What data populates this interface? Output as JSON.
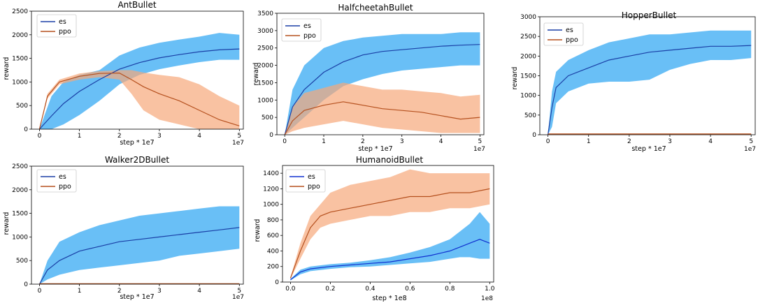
{
  "figure_colors": {
    "es_line": "#1a3fa6",
    "es_line_humanoid": "#1030d0",
    "es_band": "#4fb4f5",
    "ppo_line": "#b5501e",
    "ppo_band": "#f7a87a",
    "overlap_band": "#a9a1a0"
  },
  "chart_data": [
    {
      "id": "ant",
      "type": "line",
      "title": "AntBullet",
      "xlabel": "step * 1e7",
      "ylabel": "reward",
      "exponent_label": "1e7",
      "xlim": [
        -0.2,
        5.1
      ],
      "ylim": [
        0,
        2500
      ],
      "xticks": [
        0,
        1,
        2,
        3,
        4,
        5
      ],
      "xtick_labels": [
        "0",
        "1",
        "2",
        "3",
        "4",
        "5"
      ],
      "yticks": [
        0,
        500,
        1000,
        1500,
        2000,
        2500
      ],
      "ytick_labels": [
        "0",
        "500",
        "1000",
        "1500",
        "2000",
        "2500"
      ],
      "legend": [
        "es",
        "ppo"
      ],
      "legend_position": "top-left",
      "series": [
        {
          "name": "es",
          "x": [
            0,
            0.3,
            0.6,
            1.0,
            1.5,
            2.0,
            2.5,
            3.0,
            3.5,
            4.0,
            4.5,
            5.0
          ],
          "mean": [
            0,
            280,
            540,
            800,
            1050,
            1270,
            1410,
            1510,
            1580,
            1640,
            1680,
            1700
          ],
          "low": [
            0,
            0,
            100,
            300,
            600,
            950,
            1150,
            1270,
            1350,
            1420,
            1470,
            1470
          ],
          "high": [
            0,
            700,
            1000,
            1150,
            1250,
            1560,
            1730,
            1830,
            1900,
            1960,
            2040,
            2000
          ]
        },
        {
          "name": "ppo",
          "x": [
            0,
            0.2,
            0.5,
            1.0,
            1.5,
            2.0,
            2.3,
            2.6,
            3.0,
            3.5,
            4.0,
            4.5,
            5.0
          ],
          "mean": [
            0,
            700,
            1000,
            1120,
            1180,
            1190,
            1050,
            900,
            750,
            600,
            400,
            200,
            70
          ],
          "low": [
            0,
            650,
            950,
            1050,
            1100,
            1050,
            750,
            400,
            200,
            100,
            0,
            0,
            0
          ],
          "high": [
            0,
            750,
            1050,
            1180,
            1230,
            1250,
            1250,
            1200,
            1150,
            1100,
            950,
            700,
            500
          ]
        }
      ]
    },
    {
      "id": "halfcheetah",
      "type": "line",
      "title": "HalfcheetahBullet",
      "xlabel": "step * 1e7",
      "ylabel": "reward",
      "exponent_label": "1e7",
      "xlim": [
        -0.2,
        5.1
      ],
      "ylim": [
        0,
        3500
      ],
      "xticks": [
        0,
        1,
        2,
        3,
        4,
        5
      ],
      "xtick_labels": [
        "0",
        "1",
        "2",
        "3",
        "4",
        "5"
      ],
      "yticks": [
        0,
        500,
        1000,
        1500,
        2000,
        2500,
        3000,
        3500
      ],
      "ytick_labels": [
        "0",
        "500",
        "1000",
        "1500",
        "2000",
        "2500",
        "3000",
        "3500"
      ],
      "legend": [
        "es",
        "ppo"
      ],
      "legend_position": "top-left",
      "series": [
        {
          "name": "es",
          "x": [
            0,
            0.2,
            0.5,
            1.0,
            1.5,
            2.0,
            2.5,
            3.0,
            3.5,
            4.0,
            4.5,
            5.0
          ],
          "mean": [
            0,
            800,
            1300,
            1800,
            2100,
            2300,
            2400,
            2450,
            2500,
            2550,
            2580,
            2600
          ],
          "low": [
            0,
            200,
            500,
            1000,
            1400,
            1600,
            1750,
            1850,
            1900,
            1950,
            2000,
            2000
          ],
          "high": [
            0,
            1300,
            2000,
            2500,
            2700,
            2800,
            2850,
            2900,
            2900,
            2900,
            2950,
            2950
          ]
        },
        {
          "name": "ppo",
          "x": [
            0,
            0.2,
            0.5,
            1.0,
            1.5,
            2.0,
            2.5,
            3.0,
            3.5,
            4.0,
            4.5,
            5.0
          ],
          "mean": [
            0,
            400,
            700,
            850,
            950,
            850,
            750,
            700,
            650,
            550,
            450,
            500
          ],
          "low": [
            0,
            100,
            200,
            300,
            400,
            300,
            200,
            150,
            100,
            50,
            50,
            50
          ],
          "high": [
            0,
            800,
            1200,
            1350,
            1500,
            1400,
            1300,
            1300,
            1250,
            1200,
            1100,
            1150
          ]
        }
      ]
    },
    {
      "id": "hopper",
      "type": "line",
      "title": "HopperBullet",
      "xlabel": "step * 1e7",
      "ylabel": "reward",
      "exponent_label": "1e7",
      "xlim": [
        -0.2,
        5.1
      ],
      "ylim": [
        0,
        3000
      ],
      "xticks": [
        0,
        1,
        2,
        3,
        4,
        5
      ],
      "xtick_labels": [
        "0",
        "1",
        "2",
        "3",
        "4",
        "5"
      ],
      "yticks": [
        0,
        500,
        1000,
        1500,
        2000,
        2500,
        3000
      ],
      "ytick_labels": [
        "0",
        "500",
        "1000",
        "1500",
        "2000",
        "2500",
        "3000"
      ],
      "legend": [
        "es",
        "ppo"
      ],
      "legend_position": "top-left",
      "series": [
        {
          "name": "es",
          "x": [
            0,
            0.1,
            0.2,
            0.5,
            1.0,
            1.5,
            2.0,
            2.5,
            3.0,
            3.5,
            4.0,
            4.5,
            5.0
          ],
          "mean": [
            0,
            700,
            1200,
            1500,
            1700,
            1900,
            2000,
            2100,
            2150,
            2200,
            2250,
            2250,
            2270
          ],
          "low": [
            0,
            200,
            800,
            1100,
            1300,
            1350,
            1350,
            1400,
            1650,
            1800,
            1900,
            1900,
            1950
          ],
          "high": [
            0,
            1100,
            1600,
            1900,
            2150,
            2350,
            2450,
            2550,
            2550,
            2600,
            2650,
            2650,
            2650
          ]
        },
        {
          "name": "ppo",
          "x": [
            0,
            1,
            2,
            3,
            4,
            5
          ],
          "mean": [
            20,
            20,
            20,
            20,
            20,
            20
          ],
          "low": [
            10,
            10,
            10,
            10,
            10,
            10
          ],
          "high": [
            30,
            30,
            30,
            30,
            30,
            30
          ]
        }
      ]
    },
    {
      "id": "walker",
      "type": "line",
      "title": "Walker2DBullet",
      "xlabel": "step * 1e7",
      "ylabel": "reward",
      "exponent_label": "1e7",
      "xlim": [
        -0.2,
        5.1
      ],
      "ylim": [
        0,
        2500
      ],
      "xticks": [
        0,
        1,
        2,
        3,
        4,
        5
      ],
      "xtick_labels": [
        "0",
        "1",
        "2",
        "3",
        "4",
        "5"
      ],
      "yticks": [
        0,
        500,
        1000,
        1500,
        2000,
        2500
      ],
      "ytick_labels": [
        "0",
        "500",
        "1000",
        "1500",
        "2000",
        "2500"
      ],
      "legend": [
        "es",
        "ppo"
      ],
      "legend_position": "top-left",
      "series": [
        {
          "name": "es",
          "x": [
            0,
            0.2,
            0.5,
            1.0,
            1.5,
            2.0,
            2.5,
            3.0,
            3.5,
            4.0,
            4.5,
            5.0
          ],
          "mean": [
            0,
            300,
            500,
            700,
            800,
            900,
            950,
            1000,
            1050,
            1100,
            1150,
            1200
          ],
          "low": [
            0,
            100,
            200,
            300,
            350,
            400,
            450,
            500,
            600,
            650,
            700,
            750
          ],
          "high": [
            0,
            500,
            900,
            1100,
            1250,
            1350,
            1450,
            1500,
            1550,
            1600,
            1650,
            1650
          ]
        },
        {
          "name": "ppo",
          "x": [
            0,
            1,
            2,
            3,
            4,
            5
          ],
          "mean": [
            10,
            10,
            10,
            10,
            10,
            10
          ],
          "low": [
            5,
            5,
            5,
            5,
            5,
            5
          ],
          "high": [
            15,
            15,
            15,
            15,
            15,
            15
          ]
        }
      ]
    },
    {
      "id": "humanoid",
      "type": "line",
      "title": "HumanoidBullet",
      "xlabel": "step * 1e8",
      "ylabel": "reward",
      "exponent_label": "1e8",
      "xlim": [
        -0.04,
        1.02
      ],
      "ylim": [
        0,
        1500
      ],
      "xticks": [
        0.0,
        0.2,
        0.4,
        0.6,
        0.8,
        1.0
      ],
      "xtick_labels": [
        "0.0",
        "0.2",
        "0.4",
        "0.6",
        "0.8",
        "1.0"
      ],
      "yticks": [
        0,
        200,
        400,
        600,
        800,
        1000,
        1200,
        1400
      ],
      "ytick_labels": [
        "0",
        "200",
        "400",
        "600",
        "800",
        "1000",
        "1200",
        "1400"
      ],
      "legend": [
        "es",
        "ppo"
      ],
      "legend_position": "top-left",
      "series": [
        {
          "name": "es",
          "x": [
            0,
            0.05,
            0.1,
            0.2,
            0.3,
            0.4,
            0.5,
            0.6,
            0.7,
            0.8,
            0.85,
            0.9,
            0.95,
            1.0
          ],
          "mean": [
            30,
            130,
            170,
            200,
            220,
            240,
            260,
            300,
            340,
            400,
            450,
            500,
            550,
            500
          ],
          "low": [
            20,
            100,
            140,
            170,
            190,
            200,
            220,
            240,
            260,
            300,
            320,
            320,
            300,
            300
          ],
          "high": [
            40,
            160,
            200,
            230,
            250,
            280,
            320,
            380,
            450,
            550,
            650,
            750,
            900,
            750
          ]
        },
        {
          "name": "ppo",
          "x": [
            0,
            0.05,
            0.1,
            0.15,
            0.2,
            0.3,
            0.4,
            0.5,
            0.6,
            0.7,
            0.8,
            0.9,
            1.0
          ],
          "mean": [
            50,
            400,
            700,
            850,
            900,
            950,
            1000,
            1050,
            1100,
            1100,
            1150,
            1150,
            1200
          ],
          "low": [
            40,
            300,
            550,
            700,
            750,
            800,
            850,
            850,
            900,
            900,
            950,
            950,
            1000
          ],
          "high": [
            60,
            500,
            850,
            1000,
            1150,
            1250,
            1300,
            1350,
            1450,
            1400,
            1400,
            1400,
            1400
          ]
        }
      ]
    }
  ]
}
